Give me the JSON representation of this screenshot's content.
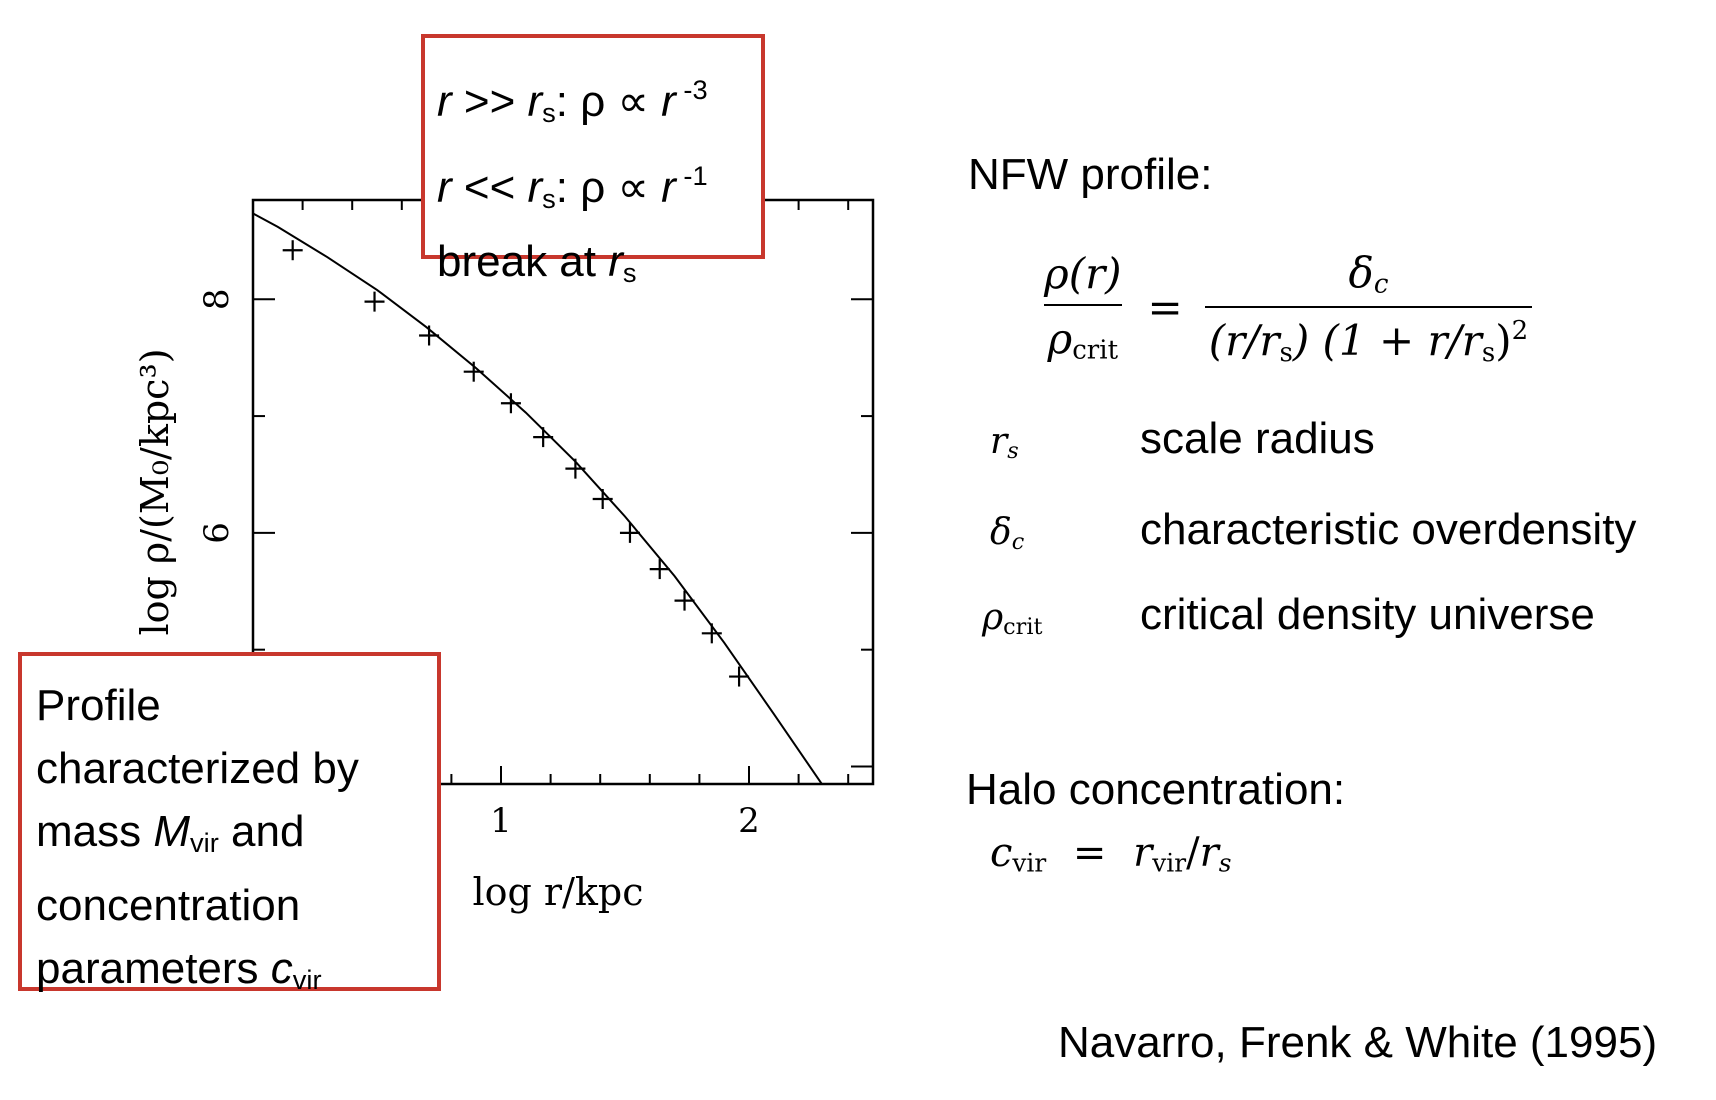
{
  "chart_data": {
    "type": "line",
    "xlabel": "log r/kpc",
    "ylabel": "log ρ/(M₀/kpc³)",
    "x_ticks": [
      "1",
      "2"
    ],
    "y_ticks": [
      "6",
      "8"
    ],
    "xlim": [
      0.0,
      2.5
    ],
    "ylim": [
      3.85,
      8.85
    ],
    "series": [
      {
        "style": "curve",
        "x": [
          -0.1,
          0.1,
          0.3,
          0.5,
          0.7,
          0.9,
          1.1,
          1.3,
          1.5,
          1.7,
          1.9,
          2.1,
          2.3
        ],
        "y": [
          8.85,
          8.62,
          8.36,
          8.08,
          7.76,
          7.41,
          7.03,
          6.61,
          6.14,
          5.63,
          5.06,
          4.45,
          3.83
        ]
      },
      {
        "style": "points",
        "x": [
          0.16,
          0.49,
          0.71,
          0.89,
          1.04,
          1.17,
          1.3,
          1.41,
          1.52,
          1.64,
          1.74,
          1.85,
          1.96
        ],
        "y": [
          8.42,
          7.98,
          7.69,
          7.38,
          7.11,
          6.82,
          6.55,
          6.29,
          6.0,
          5.69,
          5.42,
          5.14,
          4.77
        ]
      }
    ]
  },
  "box_top": {
    "line1": {
      "r": "r",
      "rel": " >> ",
      "rs": "r",
      "s": "s",
      "rho": ": ρ ∝ ",
      "r2": "r",
      "exp": " -3"
    },
    "line2": {
      "r": "r",
      "rel": " << ",
      "rs": "r",
      "s": "s",
      "rho": ": ρ ∝ ",
      "r2": "r",
      "exp": " -1"
    },
    "line3": {
      "text": "break at ",
      "r": "r",
      "s": "s"
    }
  },
  "box_bottom": {
    "line1": "Profile",
    "line2": "characterized by",
    "line3_pre": "mass ",
    "line3_M": "M",
    "line3_sub": "vir",
    "line3_post": " and",
    "line4": "concentration",
    "line5_pre": "parameters ",
    "line5_c": "c",
    "line5_sub": "vir"
  },
  "nfw": {
    "title": "NFW profile:",
    "lhs_num": "ρ(r)",
    "lhs_den_rho": "ρ",
    "lhs_den_sub": "crit",
    "equals": "=",
    "rhs_num_delta": "δ",
    "rhs_num_sub": "c",
    "rhs_den_a": "(r/r",
    "rhs_den_s1": "s",
    "rhs_den_b": ") (1 + r/r",
    "rhs_den_s2": "s",
    "rhs_den_c": ")",
    "rhs_den_exp": "2"
  },
  "definitions": [
    {
      "sym": "r",
      "sub": "s",
      "desc": "scale radius"
    },
    {
      "sym": "δ",
      "sub": "c",
      "desc": "characteristic overdensity"
    },
    {
      "sym": "ρ",
      "sub": "crit",
      "desc": "critical density universe"
    }
  ],
  "halo": {
    "title": "Halo concentration:",
    "c": "c",
    "c_sub": "vir",
    "eq": " = ",
    "r": "r",
    "r_sub": "vir",
    "slash": "/",
    "rs": "r",
    "rs_sub": "s"
  },
  "citation": "Navarro, Frenk & White (1995)",
  "colors": {
    "box_border": "#c8372d",
    "ink": "#000000"
  }
}
